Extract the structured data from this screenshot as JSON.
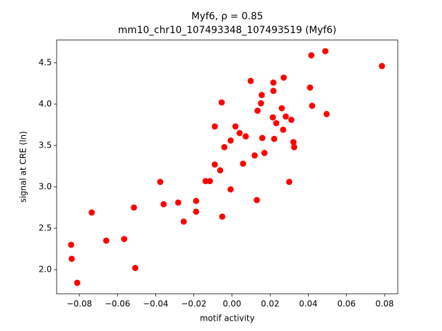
{
  "chart_data": {
    "type": "scatter",
    "title": "Myf6, ρ = 0.85",
    "subtitle": "mm10_chr10_107493348_107493519 (Myf6)",
    "x_label": "motif activity",
    "y_label": "signal at CRE (ln)",
    "color": "#ff0000",
    "xlim": [
      -0.0919,
      0.0869
    ],
    "ylim": [
      1.708,
      4.775
    ],
    "xticks": [
      {
        "value": -0.08,
        "label": "−0.08"
      },
      {
        "value": -0.06,
        "label": "−0.06"
      },
      {
        "value": -0.04,
        "label": "−0.04"
      },
      {
        "value": -0.02,
        "label": "−0.02"
      },
      {
        "value": 0,
        "label": "0.00"
      },
      0.02,
      0.04,
      0.06,
      0.08
    ],
    "yticks": [
      {
        "value": 2,
        "label": "2.0"
      },
      2.5,
      {
        "value": 3,
        "label": "3.0"
      },
      3.5,
      {
        "value": 4,
        "label": "4.0"
      },
      4.5
    ],
    "x": [
      -0.0843,
      -0.084,
      -0.0811,
      -0.0735,
      -0.0659,
      -0.0565,
      -0.0514,
      -0.0507,
      -0.0376,
      -0.0358,
      -0.0282,
      -0.0253,
      -0.0188,
      -0.0188,
      -0.0138,
      -0.0116,
      -0.009,
      -0.009,
      -0.0062,
      -0.0054,
      -0.0051,
      -0.004,
      -0.0007,
      -0.0007,
      0.0018,
      0.004,
      0.0058,
      0.0072,
      0.0098,
      0.0119,
      0.013,
      0.0134,
      0.0152,
      0.0156,
      0.0159,
      0.017,
      0.0214,
      0.0217,
      0.0221,
      0.0217,
      0.0232,
      0.0261,
      0.0268,
      0.0271,
      0.0282,
      0.03,
      0.0311,
      0.0322,
      0.0326,
      0.0409,
      0.0416,
      0.042,
      0.0489,
      0.0496,
      0.0786
    ],
    "values": [
      2.3,
      2.13,
      1.84,
      2.69,
      2.35,
      2.37,
      2.75,
      2.02,
      3.06,
      2.79,
      2.81,
      2.58,
      2.83,
      2.7,
      3.07,
      3.07,
      3.27,
      3.73,
      3.2,
      4.02,
      2.64,
      3.48,
      3.56,
      2.97,
      3.73,
      3.65,
      3.28,
      3.61,
      4.28,
      3.38,
      2.84,
      3.92,
      4.01,
      4.11,
      3.59,
      3.41,
      3.84,
      4.16,
      3.58,
      4.26,
      3.77,
      3.95,
      3.69,
      4.32,
      3.85,
      3.06,
      3.81,
      3.54,
      3.48,
      4.2,
      4.59,
      3.98,
      4.64,
      3.88,
      4.46
    ]
  }
}
